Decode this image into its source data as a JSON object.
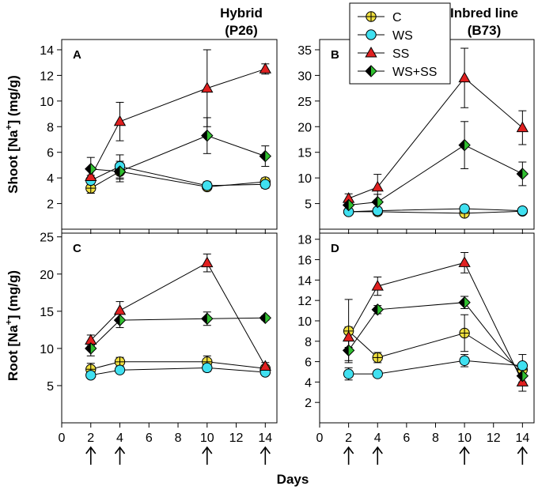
{
  "figure": {
    "xlabel": "Days",
    "ylabel_shoot": "Shoot [Na",
    "ylabel_root": "Root [Na",
    "ylabel_sup": "+",
    "ylabel_unit": "] (mg/g)",
    "left_title_line1": "Hybrid",
    "left_title_line2": "(P26)",
    "right_title_line1": "Inbred line",
    "right_title_line2": "(B73)",
    "sampling_days": [
      2,
      4,
      10,
      14
    ]
  },
  "legend": [
    {
      "key": "C",
      "label": "C",
      "marker": "circle-cross",
      "fill": "#f0e040"
    },
    {
      "key": "WS",
      "label": "WS",
      "marker": "circle",
      "fill": "#40e0f0"
    },
    {
      "key": "SS",
      "label": "SS",
      "marker": "triangle",
      "fill": "#e02020"
    },
    {
      "key": "WSSS",
      "label": "WS+SS",
      "marker": "diamond",
      "fill": "#30c030"
    }
  ],
  "chart_data": [
    {
      "type": "line",
      "panel": "A",
      "title": "Hybrid (P26)",
      "ylabel": "Shoot [Na+] (mg/g)",
      "xlabel": "",
      "xlim": [
        0,
        14.8
      ],
      "ylim": [
        0,
        14.8
      ],
      "xticks": [
        0,
        2,
        4,
        6,
        8,
        10,
        12,
        14
      ],
      "yticks": [
        2,
        4,
        6,
        8,
        10,
        12,
        14
      ],
      "x": [
        2,
        4,
        10,
        14
      ],
      "series": [
        {
          "name": "C",
          "values": [
            3.2,
            4.5,
            3.3,
            3.7
          ],
          "errors": [
            0.4,
            0.6,
            0.2,
            0.3
          ]
        },
        {
          "name": "WS",
          "values": [
            3.8,
            4.9,
            3.4,
            3.5
          ],
          "errors": [
            0.4,
            0.9,
            0.3,
            0.3
          ]
        },
        {
          "name": "SS",
          "values": [
            4.1,
            8.4,
            11.0,
            12.5
          ],
          "errors": [
            0.5,
            1.5,
            3.0,
            0.4
          ]
        },
        {
          "name": "WS+SS",
          "values": [
            4.7,
            4.5,
            7.3,
            5.7
          ],
          "errors": [
            0.9,
            0.8,
            1.4,
            0.8
          ]
        }
      ]
    },
    {
      "type": "line",
      "panel": "B",
      "title": "Inbred line (B73)",
      "ylabel": "",
      "xlabel": "",
      "xlim": [
        0,
        14.8
      ],
      "ylim": [
        0,
        37
      ],
      "xticks": [
        0,
        2,
        4,
        6,
        8,
        10,
        12,
        14
      ],
      "yticks": [
        5,
        10,
        15,
        20,
        25,
        30,
        35
      ],
      "x": [
        2,
        4,
        10,
        14
      ],
      "series": [
        {
          "name": "C",
          "values": [
            3.4,
            3.4,
            3.1,
            3.5
          ],
          "errors": [
            0.4,
            0.4,
            0.3,
            0.3
          ]
        },
        {
          "name": "WS",
          "values": [
            3.4,
            3.6,
            4.0,
            3.6
          ],
          "errors": [
            0.4,
            0.5,
            0.4,
            0.4
          ]
        },
        {
          "name": "SS",
          "values": [
            6.0,
            8.2,
            29.5,
            19.8
          ],
          "errors": [
            0.9,
            2.5,
            5.8,
            3.3
          ]
        },
        {
          "name": "WS+SS",
          "values": [
            4.7,
            5.3,
            16.4,
            10.8
          ],
          "errors": [
            1.0,
            1.5,
            4.6,
            2.3
          ]
        }
      ]
    },
    {
      "type": "line",
      "panel": "C",
      "title": "",
      "ylabel": "Root [Na+] (mg/g)",
      "xlabel": "Days",
      "xlim": [
        0,
        14.8
      ],
      "ylim": [
        0,
        25.5
      ],
      "xticks": [
        0,
        2,
        4,
        6,
        8,
        10,
        12,
        14
      ],
      "yticks": [
        5,
        10,
        15,
        20,
        25
      ],
      "x": [
        2,
        4,
        10,
        14
      ],
      "series": [
        {
          "name": "C",
          "values": [
            7.2,
            8.2,
            8.2,
            7.3
          ],
          "errors": [
            0.8,
            0.6,
            0.8,
            0.4
          ]
        },
        {
          "name": "WS",
          "values": [
            6.4,
            7.1,
            7.4,
            6.8
          ],
          "errors": [
            0.4,
            0.4,
            0.5,
            0.3
          ]
        },
        {
          "name": "SS",
          "values": [
            11.1,
            15.1,
            21.5,
            7.6
          ],
          "errors": [
            0.7,
            1.2,
            1.2,
            0.5
          ]
        },
        {
          "name": "WS+SS",
          "values": [
            10.0,
            13.8,
            14.0,
            14.1
          ],
          "errors": [
            1.0,
            1.0,
            0.9,
            0.3
          ]
        }
      ]
    },
    {
      "type": "line",
      "panel": "D",
      "title": "",
      "ylabel": "",
      "xlabel": "Days",
      "xlim": [
        0,
        14.8
      ],
      "ylim": [
        0,
        18.6
      ],
      "xticks": [
        0,
        2,
        4,
        6,
        8,
        10,
        12,
        14
      ],
      "yticks": [
        2,
        4,
        6,
        8,
        10,
        12,
        14,
        16,
        18
      ],
      "x": [
        2,
        4,
        10,
        14
      ],
      "series": [
        {
          "name": "C",
          "values": [
            9.0,
            6.4,
            8.8,
            5.2
          ],
          "errors": [
            3.1,
            0.5,
            1.8,
            0.6
          ]
        },
        {
          "name": "WS",
          "values": [
            4.8,
            4.8,
            6.1,
            5.6
          ],
          "errors": [
            0.6,
            0.3,
            0.6,
            1.1
          ]
        },
        {
          "name": "SS",
          "values": [
            8.4,
            13.4,
            15.7,
            4.0
          ],
          "errors": [
            1.0,
            0.9,
            1.0,
            0.9
          ]
        },
        {
          "name": "WS+SS",
          "values": [
            7.1,
            11.1,
            11.8,
            4.6
          ],
          "errors": [
            1.0,
            0.4,
            0.6,
            0.6
          ]
        }
      ]
    }
  ]
}
